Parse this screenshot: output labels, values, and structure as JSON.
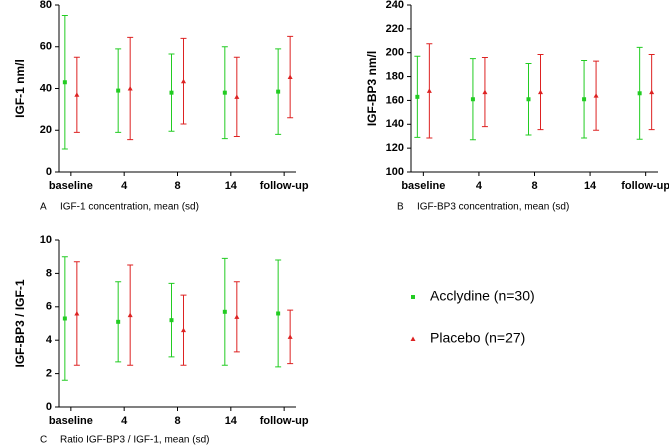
{
  "chart_data": [
    {
      "type": "errorbar",
      "panel": "A",
      "caption": "IGF-1 concentration, mean (sd)",
      "y_label": "IGF-1 nm/l",
      "categories": [
        "baseline",
        "4",
        "8",
        "14",
        "follow-up"
      ],
      "ylim": [
        0,
        80
      ],
      "yticks": [
        0,
        20,
        40,
        60,
        80
      ],
      "series": [
        {
          "name": "Acclydine (n=30)",
          "color": "#22cc22",
          "marker": "square",
          "values": [
            43,
            39,
            38,
            38,
            38.5
          ],
          "errors": [
            32,
            20,
            18.5,
            22,
            20.5
          ]
        },
        {
          "name": "Placebo (n=27)",
          "color": "#dd2222",
          "marker": "triangle",
          "values": [
            37,
            40,
            43.5,
            36,
            45.5
          ],
          "errors": [
            18,
            24.5,
            20.5,
            19,
            19.5
          ]
        }
      ]
    },
    {
      "type": "errorbar",
      "panel": "B",
      "caption": "IGF-BP3 concentration, mean (sd)",
      "y_label": "IGF-BP3 nm/l",
      "categories": [
        "baseline",
        "4",
        "8",
        "14",
        "follow-up"
      ],
      "ylim": [
        100,
        240
      ],
      "yticks": [
        100,
        120,
        140,
        160,
        180,
        200,
        220,
        240
      ],
      "series": [
        {
          "name": "Acclydine (n=30)",
          "color": "#22cc22",
          "marker": "square",
          "values": [
            163,
            161,
            161,
            161,
            166
          ],
          "errors": [
            34,
            34,
            30,
            32.5,
            38.5
          ]
        },
        {
          "name": "Placebo (n=27)",
          "color": "#dd2222",
          "marker": "triangle",
          "values": [
            168,
            167,
            167,
            164,
            167
          ],
          "errors": [
            39.5,
            29,
            31.5,
            29,
            31.5
          ]
        }
      ]
    },
    {
      "type": "errorbar",
      "panel": "C",
      "caption": "Ratio IGF-BP3 / IGF-1, mean (sd)",
      "y_label": "IGF-BP3 / IGF-1",
      "categories": [
        "baseline",
        "4",
        "8",
        "14",
        "follow-up"
      ],
      "ylim": [
        0,
        10
      ],
      "yticks": [
        0,
        2,
        4,
        6,
        8,
        10
      ],
      "series": [
        {
          "name": "Acclydine (n=30)",
          "color": "#22cc22",
          "marker": "square",
          "values": [
            5.3,
            5.1,
            5.2,
            5.7,
            5.6
          ],
          "errors": [
            3.7,
            2.4,
            2.2,
            3.2,
            3.2
          ]
        },
        {
          "name": "Placebo (n=27)",
          "color": "#dd2222",
          "marker": "triangle",
          "values": [
            5.6,
            5.5,
            4.6,
            5.4,
            4.2
          ],
          "errors": [
            3.1,
            3.0,
            2.1,
            2.1,
            1.6
          ]
        }
      ]
    }
  ]
}
